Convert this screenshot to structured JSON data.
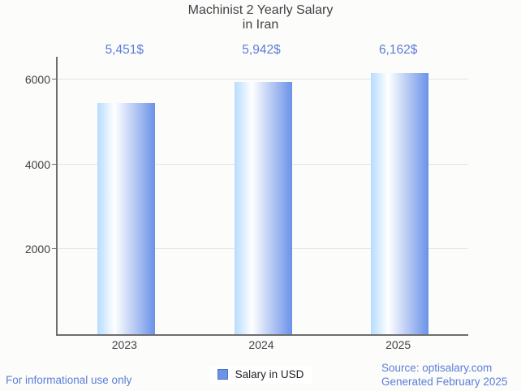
{
  "page": {
    "background": "#fcfcfa"
  },
  "title": {
    "line1": "Machinist 2 Yearly Salary",
    "line2": "in Iran"
  },
  "chart_data": {
    "type": "bar",
    "title": "Machinist 2 Yearly Salary in Iran",
    "categories": [
      "2023",
      "2024",
      "2025"
    ],
    "series": [
      {
        "name": "Salary in USD",
        "values": [
          5451,
          5942,
          6162
        ],
        "value_labels": [
          "5,451$",
          "5,942$",
          "6,162$"
        ]
      }
    ],
    "xlabel": "",
    "ylabel": "",
    "ylim": [
      0,
      6540
    ],
    "yticks": [
      2000,
      4000,
      6000
    ],
    "grid": true,
    "legend_position": "bottom-center",
    "bar_gradient": [
      "#b7dcfe",
      "#ffffff",
      "#6b92e8"
    ],
    "axis_color": "#6e6e6e",
    "grid_color": "#e4e4e2",
    "tick_label_color": "#3f4246",
    "value_label_color": "#5b7eda"
  },
  "legend": {
    "label": "Salary in USD",
    "swatch_fill": "#6d93e5",
    "swatch_border": "#4d74c5"
  },
  "footer": {
    "left": "For informational use only",
    "source_line": "Source: optisalary.com",
    "generated_line": "Generated February 2025",
    "text_color": "#5b7eda"
  }
}
